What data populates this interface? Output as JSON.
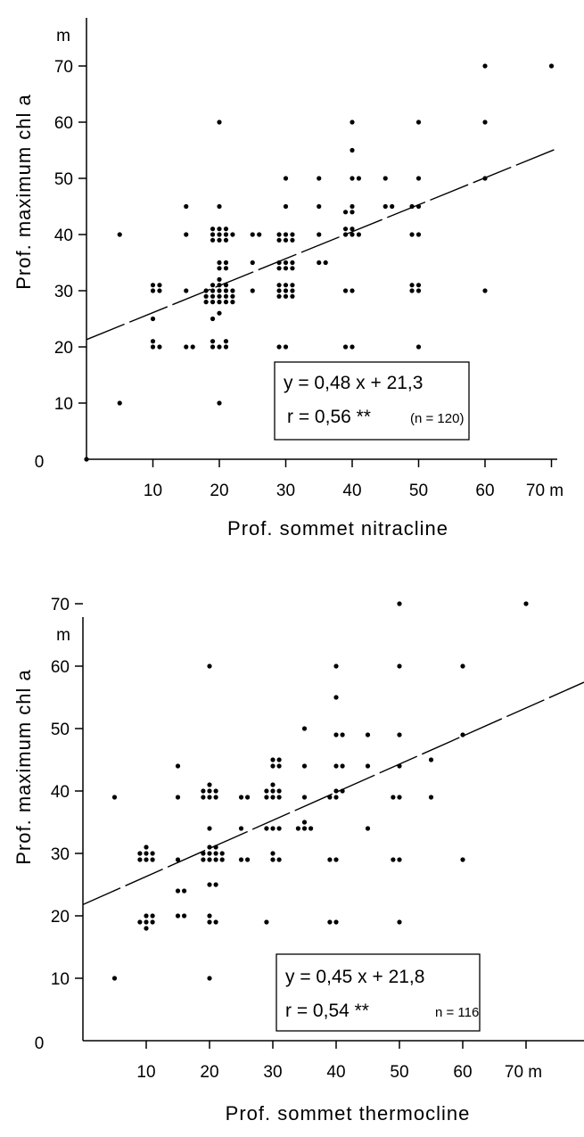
{
  "chart_data": [
    {
      "type": "scatter",
      "xlabel": "Prof. sommet nitracline",
      "ylabel": "Prof. maximum chl a",
      "origin_label": "0",
      "x_unit_label": "70 m",
      "y_unit_label": "m",
      "xticks": [
        "10",
        "20",
        "30",
        "40",
        "50",
        "60"
      ],
      "yticks": [
        "10",
        "20",
        "30",
        "40",
        "50",
        "60",
        "70"
      ],
      "xlim": [
        0,
        75
      ],
      "ylim": [
        0,
        70
      ],
      "grid": false,
      "box_position": "lower-right",
      "equation": "y = 0,48 x + 21,3",
      "correlation": "r = 0,56 **",
      "n_label": "(n = 120)",
      "regression": {
        "slope": 0.48,
        "intercept": 21.3
      },
      "points": [
        [
          0,
          0
        ],
        [
          5,
          10
        ],
        [
          5,
          40
        ],
        [
          10,
          20
        ],
        [
          10,
          21
        ],
        [
          11,
          20
        ],
        [
          10,
          25
        ],
        [
          10,
          30
        ],
        [
          11,
          30
        ],
        [
          10,
          31
        ],
        [
          11,
          31
        ],
        [
          15,
          20
        ],
        [
          16,
          20
        ],
        [
          15,
          30
        ],
        [
          15,
          40
        ],
        [
          15,
          45
        ],
        [
          20,
          10
        ],
        [
          19,
          20
        ],
        [
          20,
          20
        ],
        [
          21,
          20
        ],
        [
          19,
          21
        ],
        [
          21,
          21
        ],
        [
          19,
          25
        ],
        [
          20,
          26
        ],
        [
          18,
          28
        ],
        [
          19,
          28
        ],
        [
          20,
          28
        ],
        [
          21,
          28
        ],
        [
          22,
          28
        ],
        [
          18,
          29
        ],
        [
          19,
          29
        ],
        [
          20,
          29
        ],
        [
          21,
          29
        ],
        [
          22,
          29
        ],
        [
          18,
          30
        ],
        [
          19,
          30
        ],
        [
          20,
          30
        ],
        [
          21,
          30
        ],
        [
          22,
          30
        ],
        [
          19,
          31
        ],
        [
          20,
          31
        ],
        [
          21,
          31
        ],
        [
          20,
          32
        ],
        [
          20,
          34
        ],
        [
          21,
          34
        ],
        [
          20,
          35
        ],
        [
          21,
          35
        ],
        [
          19,
          39
        ],
        [
          20,
          39
        ],
        [
          21,
          39
        ],
        [
          19,
          40
        ],
        [
          20,
          40
        ],
        [
          21,
          40
        ],
        [
          22,
          40
        ],
        [
          19,
          41
        ],
        [
          20,
          41
        ],
        [
          21,
          41
        ],
        [
          20,
          45
        ],
        [
          20,
          60
        ],
        [
          25,
          30
        ],
        [
          25,
          35
        ],
        [
          25,
          40
        ],
        [
          26,
          40
        ],
        [
          29,
          20
        ],
        [
          30,
          20
        ],
        [
          29,
          29
        ],
        [
          30,
          29
        ],
        [
          31,
          29
        ],
        [
          29,
          30
        ],
        [
          30,
          30
        ],
        [
          31,
          30
        ],
        [
          29,
          31
        ],
        [
          30,
          31
        ],
        [
          31,
          31
        ],
        [
          29,
          34
        ],
        [
          30,
          34
        ],
        [
          31,
          34
        ],
        [
          29,
          35
        ],
        [
          30,
          35
        ],
        [
          31,
          35
        ],
        [
          29,
          39
        ],
        [
          30,
          39
        ],
        [
          31,
          39
        ],
        [
          29,
          40
        ],
        [
          30,
          40
        ],
        [
          31,
          40
        ],
        [
          30,
          45
        ],
        [
          30,
          50
        ],
        [
          35,
          35
        ],
        [
          36,
          35
        ],
        [
          35,
          40
        ],
        [
          35,
          45
        ],
        [
          35,
          50
        ],
        [
          39,
          20
        ],
        [
          40,
          20
        ],
        [
          39,
          30
        ],
        [
          40,
          30
        ],
        [
          39,
          40
        ],
        [
          40,
          40
        ],
        [
          41,
          40
        ],
        [
          39,
          41
        ],
        [
          40,
          41
        ],
        [
          39,
          44
        ],
        [
          40,
          44
        ],
        [
          40,
          45
        ],
        [
          40,
          50
        ],
        [
          41,
          50
        ],
        [
          40,
          55
        ],
        [
          40,
          60
        ],
        [
          45,
          45
        ],
        [
          46,
          45
        ],
        [
          45,
          50
        ],
        [
          49,
          30
        ],
        [
          50,
          30
        ],
        [
          49,
          31
        ],
        [
          50,
          31
        ],
        [
          49,
          40
        ],
        [
          50,
          40
        ],
        [
          49,
          45
        ],
        [
          50,
          45
        ],
        [
          50,
          20
        ],
        [
          50,
          50
        ],
        [
          50,
          60
        ],
        [
          60,
          30
        ],
        [
          60,
          50
        ],
        [
          60,
          60
        ],
        [
          60,
          70
        ],
        [
          70,
          70
        ]
      ]
    },
    {
      "type": "scatter",
      "xlabel": "Prof. sommet thermocline",
      "ylabel": "Prof. maximum chl a",
      "origin_label": "0",
      "x_unit_label": "70 m",
      "y_unit_label": "m",
      "xticks": [
        "10",
        "20",
        "30",
        "40",
        "50",
        "60"
      ],
      "yticks": [
        "10",
        "20",
        "30",
        "40",
        "50",
        "60",
        "70"
      ],
      "xlim": [
        0,
        78
      ],
      "ylim": [
        0,
        70
      ],
      "grid": false,
      "box_position": "lower-right",
      "equation": "y = 0,45 x + 21,8",
      "correlation": "r = 0,54 **",
      "n_label": "n = 116",
      "regression": {
        "slope": 0.45,
        "intercept": 21.8
      },
      "points": [
        [
          5,
          10
        ],
        [
          5,
          39
        ],
        [
          9,
          19
        ],
        [
          10,
          19
        ],
        [
          11,
          19
        ],
        [
          10,
          20
        ],
        [
          11,
          20
        ],
        [
          10,
          18
        ],
        [
          9,
          29
        ],
        [
          10,
          29
        ],
        [
          11,
          29
        ],
        [
          9,
          30
        ],
        [
          10,
          30
        ],
        [
          11,
          30
        ],
        [
          10,
          31
        ],
        [
          15,
          20
        ],
        [
          16,
          20
        ],
        [
          15,
          24
        ],
        [
          16,
          24
        ],
        [
          15,
          29
        ],
        [
          15,
          39
        ],
        [
          15,
          44
        ],
        [
          20,
          10
        ],
        [
          20,
          19
        ],
        [
          21,
          19
        ],
        [
          20,
          20
        ],
        [
          20,
          25
        ],
        [
          21,
          25
        ],
        [
          19,
          29
        ],
        [
          20,
          29
        ],
        [
          21,
          29
        ],
        [
          22,
          29
        ],
        [
          19,
          30
        ],
        [
          20,
          30
        ],
        [
          21,
          30
        ],
        [
          22,
          30
        ],
        [
          20,
          31
        ],
        [
          21,
          31
        ],
        [
          20,
          34
        ],
        [
          19,
          39
        ],
        [
          20,
          39
        ],
        [
          21,
          39
        ],
        [
          19,
          40
        ],
        [
          20,
          40
        ],
        [
          21,
          40
        ],
        [
          20,
          41
        ],
        [
          20,
          60
        ],
        [
          25,
          29
        ],
        [
          26,
          29
        ],
        [
          25,
          34
        ],
        [
          25,
          39
        ],
        [
          26,
          39
        ],
        [
          29,
          19
        ],
        [
          30,
          29
        ],
        [
          31,
          29
        ],
        [
          30,
          30
        ],
        [
          29,
          34
        ],
        [
          30,
          34
        ],
        [
          31,
          34
        ],
        [
          29,
          39
        ],
        [
          30,
          39
        ],
        [
          31,
          39
        ],
        [
          29,
          40
        ],
        [
          30,
          40
        ],
        [
          31,
          40
        ],
        [
          30,
          41
        ],
        [
          30,
          44
        ],
        [
          31,
          44
        ],
        [
          30,
          45
        ],
        [
          31,
          45
        ],
        [
          34,
          34
        ],
        [
          35,
          34
        ],
        [
          36,
          34
        ],
        [
          35,
          35
        ],
        [
          35,
          39
        ],
        [
          35,
          44
        ],
        [
          35,
          50
        ],
        [
          39,
          19
        ],
        [
          40,
          19
        ],
        [
          39,
          29
        ],
        [
          40,
          29
        ],
        [
          39,
          39
        ],
        [
          40,
          39
        ],
        [
          40,
          40
        ],
        [
          41,
          40
        ],
        [
          40,
          44
        ],
        [
          41,
          44
        ],
        [
          40,
          49
        ],
        [
          41,
          49
        ],
        [
          40,
          55
        ],
        [
          40,
          60
        ],
        [
          45,
          34
        ],
        [
          45,
          44
        ],
        [
          45,
          49
        ],
        [
          50,
          19
        ],
        [
          49,
          29
        ],
        [
          50,
          29
        ],
        [
          49,
          39
        ],
        [
          50,
          39
        ],
        [
          50,
          44
        ],
        [
          50,
          49
        ],
        [
          50,
          60
        ],
        [
          50,
          70
        ],
        [
          55,
          39
        ],
        [
          55,
          45
        ],
        [
          60,
          29
        ],
        [
          60,
          49
        ],
        [
          60,
          60
        ],
        [
          70,
          70
        ]
      ]
    }
  ]
}
